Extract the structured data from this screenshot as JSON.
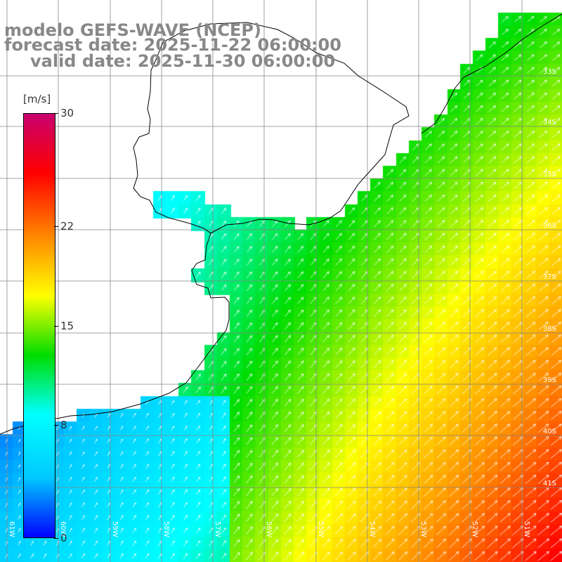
{
  "titles": {
    "line1": "modelo GEFS-WAVE (NCEP)",
    "line2": "forecast date: 2025-11-22 06:00:00",
    "line3": "valid date: 2025-11-30 06:00:00"
  },
  "colorbar": {
    "units": "[m/s]",
    "labels": [
      {
        "text": "30",
        "value": 30
      },
      {
        "text": "22",
        "value": 22
      },
      {
        "text": "15",
        "value": 15
      },
      {
        "text": "8",
        "value": 8
      },
      {
        "text": "0",
        "value": 0
      }
    ],
    "range": [
      0,
      30
    ],
    "colors": [
      "#0000ff",
      "#00c8ff",
      "#00ffff",
      "#00dd00",
      "#ffff00",
      "#ff8800",
      "#ff0000",
      "#c8006e"
    ]
  },
  "map": {
    "lat_labels": [
      "33S",
      "34S",
      "35S",
      "36S",
      "37S",
      "38S",
      "39S",
      "40S",
      "41S"
    ],
    "lon_labels": [
      "61W",
      "60W",
      "59W",
      "58W",
      "57W",
      "56W",
      "55W",
      "54W",
      "53W",
      "52W",
      "51W"
    ],
    "variable": "wind speed and direction",
    "land_color": "#ffffff",
    "coast_color": "#000000",
    "grid_color": "#888888"
  }
}
